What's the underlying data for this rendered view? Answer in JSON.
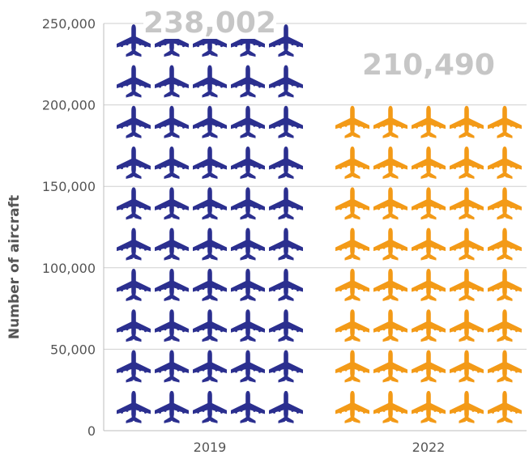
{
  "chart_data": {
    "type": "bar",
    "style": "pictograph",
    "categories": [
      "2019",
      "2022"
    ],
    "values": [
      238002,
      210490
    ],
    "value_labels": [
      "238,002",
      "210,490"
    ],
    "ylabel": "Number of aircraft",
    "ylim": [
      0,
      250000
    ],
    "yticks": [
      0,
      50000,
      100000,
      150000,
      200000,
      250000
    ],
    "ytick_labels": [
      "0",
      "50,000",
      "100,000",
      "150,000",
      "200,000",
      "250,000"
    ],
    "grid": true,
    "icon": "airplane-icon",
    "icons_per_row": 5,
    "colors": [
      "#2b2f8f",
      "#f39a17"
    ]
  }
}
